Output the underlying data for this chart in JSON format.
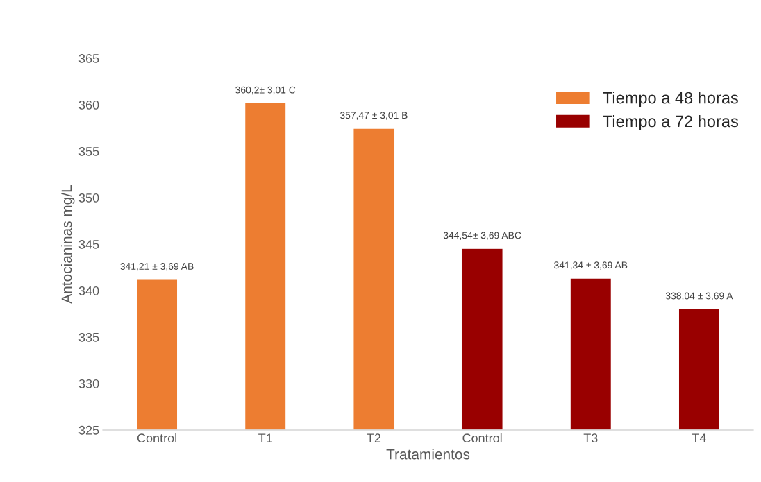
{
  "chart_data": {
    "type": "bar",
    "xlabel": "Tratamientos",
    "ylabel": "Antocianinas mg/L",
    "categories": [
      "Control",
      "T1",
      "T2",
      "Control",
      "T3",
      "T4"
    ],
    "series": [
      {
        "name": "Tiempo a 48 horas",
        "color": "#ed7d31",
        "values": [
          341.21,
          360.2,
          357.47,
          null,
          null,
          null
        ],
        "value_labels": [
          "341,21 ± 3,69 AB",
          "360,2± 3,01 C",
          "357,47 ± 3,01 B",
          null,
          null,
          null
        ]
      },
      {
        "name": "Tiempo a 72 horas",
        "color": "#990000",
        "values": [
          null,
          null,
          null,
          344.54,
          341.34,
          338.04
        ],
        "value_labels": [
          null,
          null,
          null,
          "344,54± 3,69 ABC",
          "341,34 ± 3,69 AB",
          "338,04 ± 3,69 A"
        ]
      }
    ],
    "ylim": [
      325,
      365
    ],
    "yticks": [
      325,
      330,
      335,
      340,
      345,
      350,
      355,
      360,
      365
    ],
    "grid": false,
    "legend": "top right"
  }
}
